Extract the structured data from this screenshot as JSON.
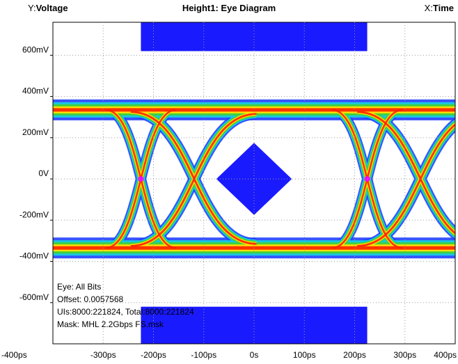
{
  "header": {
    "y_prefix": "Y:",
    "y_label": "Voltage",
    "title": "Height1: Eye Diagram",
    "x_prefix": "X:",
    "x_label": "Time"
  },
  "annotations": [
    "Eye: All Bits",
    "Offset: 0.0057568",
    "UIs:8000:221824, Total:8000:221824",
    "Mask: MHL 2.2Gbps FS.msk"
  ],
  "colors": {
    "mask": "#1a1aff",
    "density_outer": "#2040ff",
    "density_low": "#18c8e0",
    "density_mid": "#40d040",
    "density_high": "#ffe000",
    "density_peak": "#ff2000",
    "crossing": "#ff00ff",
    "grid": "#9a9a9a"
  },
  "chart_data": {
    "type": "heatmap",
    "title": "Height1: Eye Diagram",
    "xlabel": "Time",
    "ylabel": "Voltage",
    "xlim": [
      -400,
      400
    ],
    "ylim": [
      -800,
      760
    ],
    "x_unit": "ps",
    "y_unit": "mV",
    "x_ticks": [
      {
        "value": -400,
        "label": "-400ps"
      },
      {
        "value": -300,
        "label": "-300ps"
      },
      {
        "value": -200,
        "label": "-200ps"
      },
      {
        "value": -100,
        "label": "-100ps"
      },
      {
        "value": 0,
        "label": "0s"
      },
      {
        "value": 100,
        "label": "100ps"
      },
      {
        "value": 200,
        "label": "200ps"
      },
      {
        "value": 300,
        "label": "300ps"
      },
      {
        "value": 400,
        "label": "400ps"
      }
    ],
    "y_ticks": [
      {
        "value": 600,
        "label": "600mV"
      },
      {
        "value": 400,
        "label": "400mV"
      },
      {
        "value": 200,
        "label": "200mV"
      },
      {
        "value": 0,
        "label": "0V"
      },
      {
        "value": -200,
        "label": "-200mV"
      },
      {
        "value": -400,
        "label": "-400mV"
      },
      {
        "value": -600,
        "label": "-600mV"
      }
    ],
    "grid": true,
    "eye": {
      "high_level": 335,
      "low_level": -335,
      "crossings": [
        -225,
        225
      ],
      "crossing_level": 0
    },
    "mask": {
      "center_polygon": [
        [
          -75,
          0
        ],
        [
          0,
          175
        ],
        [
          75,
          0
        ],
        [
          0,
          -175
        ]
      ],
      "top_region": {
        "x": [
          -225,
          225
        ],
        "y": [
          620,
          760
        ]
      },
      "bottom_region": {
        "x": [
          -225,
          225
        ],
        "y": [
          -800,
          -620
        ]
      }
    }
  }
}
